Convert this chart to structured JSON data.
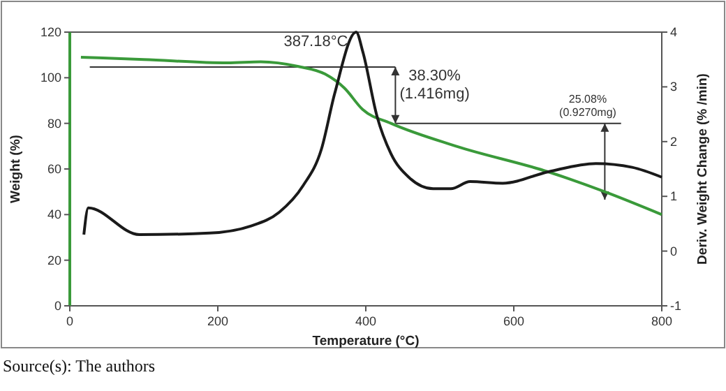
{
  "chart_data": {
    "type": "line",
    "xlabel": "Temperature (°C)",
    "ylabel": "Weight (%)",
    "y2label": "Deriv. Weight Change (% /min)",
    "xlim": [
      0,
      800
    ],
    "xticks": [
      0,
      200,
      400,
      600,
      800
    ],
    "ylim": [
      0,
      120
    ],
    "yticks": [
      0,
      20,
      40,
      60,
      80,
      100,
      120
    ],
    "y2lim": [
      -1,
      4
    ],
    "y2ticks": [
      -1,
      0,
      1,
      2,
      3,
      4
    ],
    "grid": false,
    "series": [
      {
        "color": "#3a9a3a",
        "x": [
          15,
          100,
          213,
          258,
          308,
          345,
          371,
          396,
          434,
          522,
          647,
          723,
          800
        ],
        "values": [
          109,
          108,
          106.5,
          107,
          105,
          101.6,
          95.5,
          86,
          80,
          70,
          58.7,
          50,
          40
        ]
      },
      {
        "color": "#1a1a1a",
        "axis": "y2",
        "x": [
          19,
          25,
          94,
          189,
          245,
          283,
          315,
          340,
          358,
          387,
          396,
          415,
          434,
          458,
          491,
          515,
          541,
          585,
          647,
          711,
          760,
          800
        ],
        "values": [
          0.3,
          0.79,
          0.3,
          0.33,
          0.46,
          0.71,
          1.19,
          1.86,
          2.88,
          4.0,
          3.64,
          2.47,
          1.78,
          1.35,
          1.14,
          1.14,
          1.27,
          1.24,
          1.45,
          1.6,
          1.53,
          1.35
        ]
      }
    ],
    "annotations": [
      {
        "text": "387.18°C",
        "x": 387.18,
        "y": 114
      },
      {
        "text": "38.30%\n(1.416mg)",
        "x": 440,
        "y": 80
      },
      {
        "text": "25.08%\n(0.9270mg)",
        "x": 723,
        "y": 50
      },
      "Source(s): The authors"
    ]
  }
}
